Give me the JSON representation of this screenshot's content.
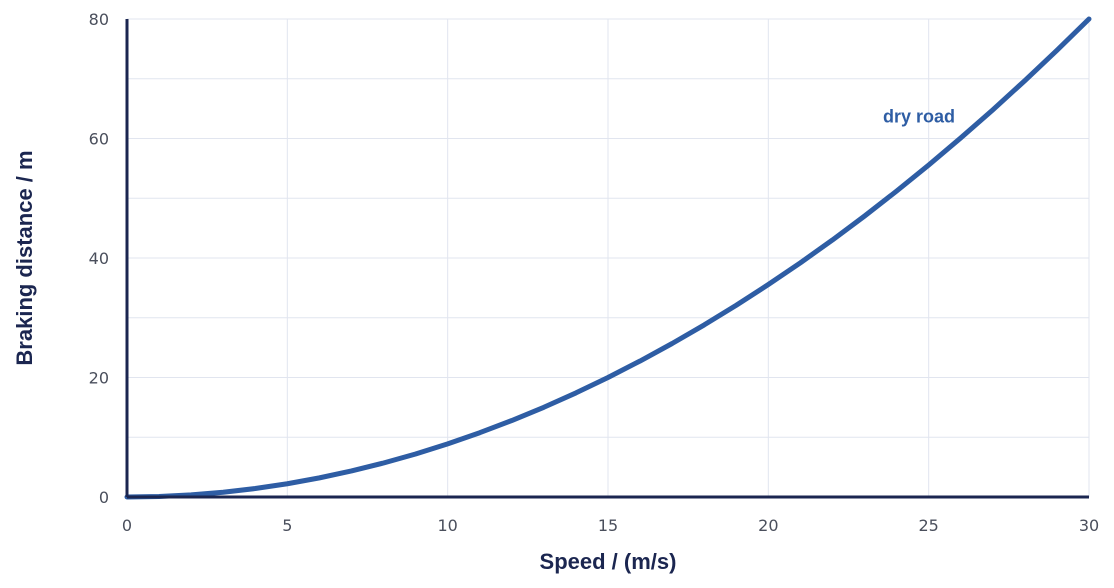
{
  "chart_data": {
    "type": "line",
    "title": "",
    "xlabel": "Speed / (m/s)",
    "ylabel": "Braking distance / m",
    "xlim": [
      0,
      30
    ],
    "ylim": [
      0,
      80
    ],
    "xticks": [
      0,
      5,
      10,
      15,
      20,
      25,
      30
    ],
    "yticks": [
      0,
      20,
      40,
      60,
      80
    ],
    "grid": true,
    "series": [
      {
        "name": "dry road",
        "color": "#2e5da4",
        "x": [
          0,
          1,
          2,
          3,
          4,
          5,
          6,
          7,
          8,
          9,
          10,
          11,
          12,
          13,
          14,
          15,
          16,
          17,
          18,
          19,
          20,
          21,
          22,
          23,
          24,
          25,
          26,
          27,
          28,
          29,
          30
        ],
        "y": [
          0,
          0.09,
          0.36,
          0.8,
          1.42,
          2.22,
          3.2,
          4.36,
          5.69,
          7.2,
          8.89,
          10.76,
          12.8,
          15.02,
          17.42,
          20.0,
          22.76,
          25.69,
          28.8,
          32.09,
          35.56,
          39.2,
          43.02,
          47.02,
          51.2,
          55.56,
          60.09,
          64.8,
          69.69,
          74.76,
          80.0
        ]
      }
    ]
  }
}
